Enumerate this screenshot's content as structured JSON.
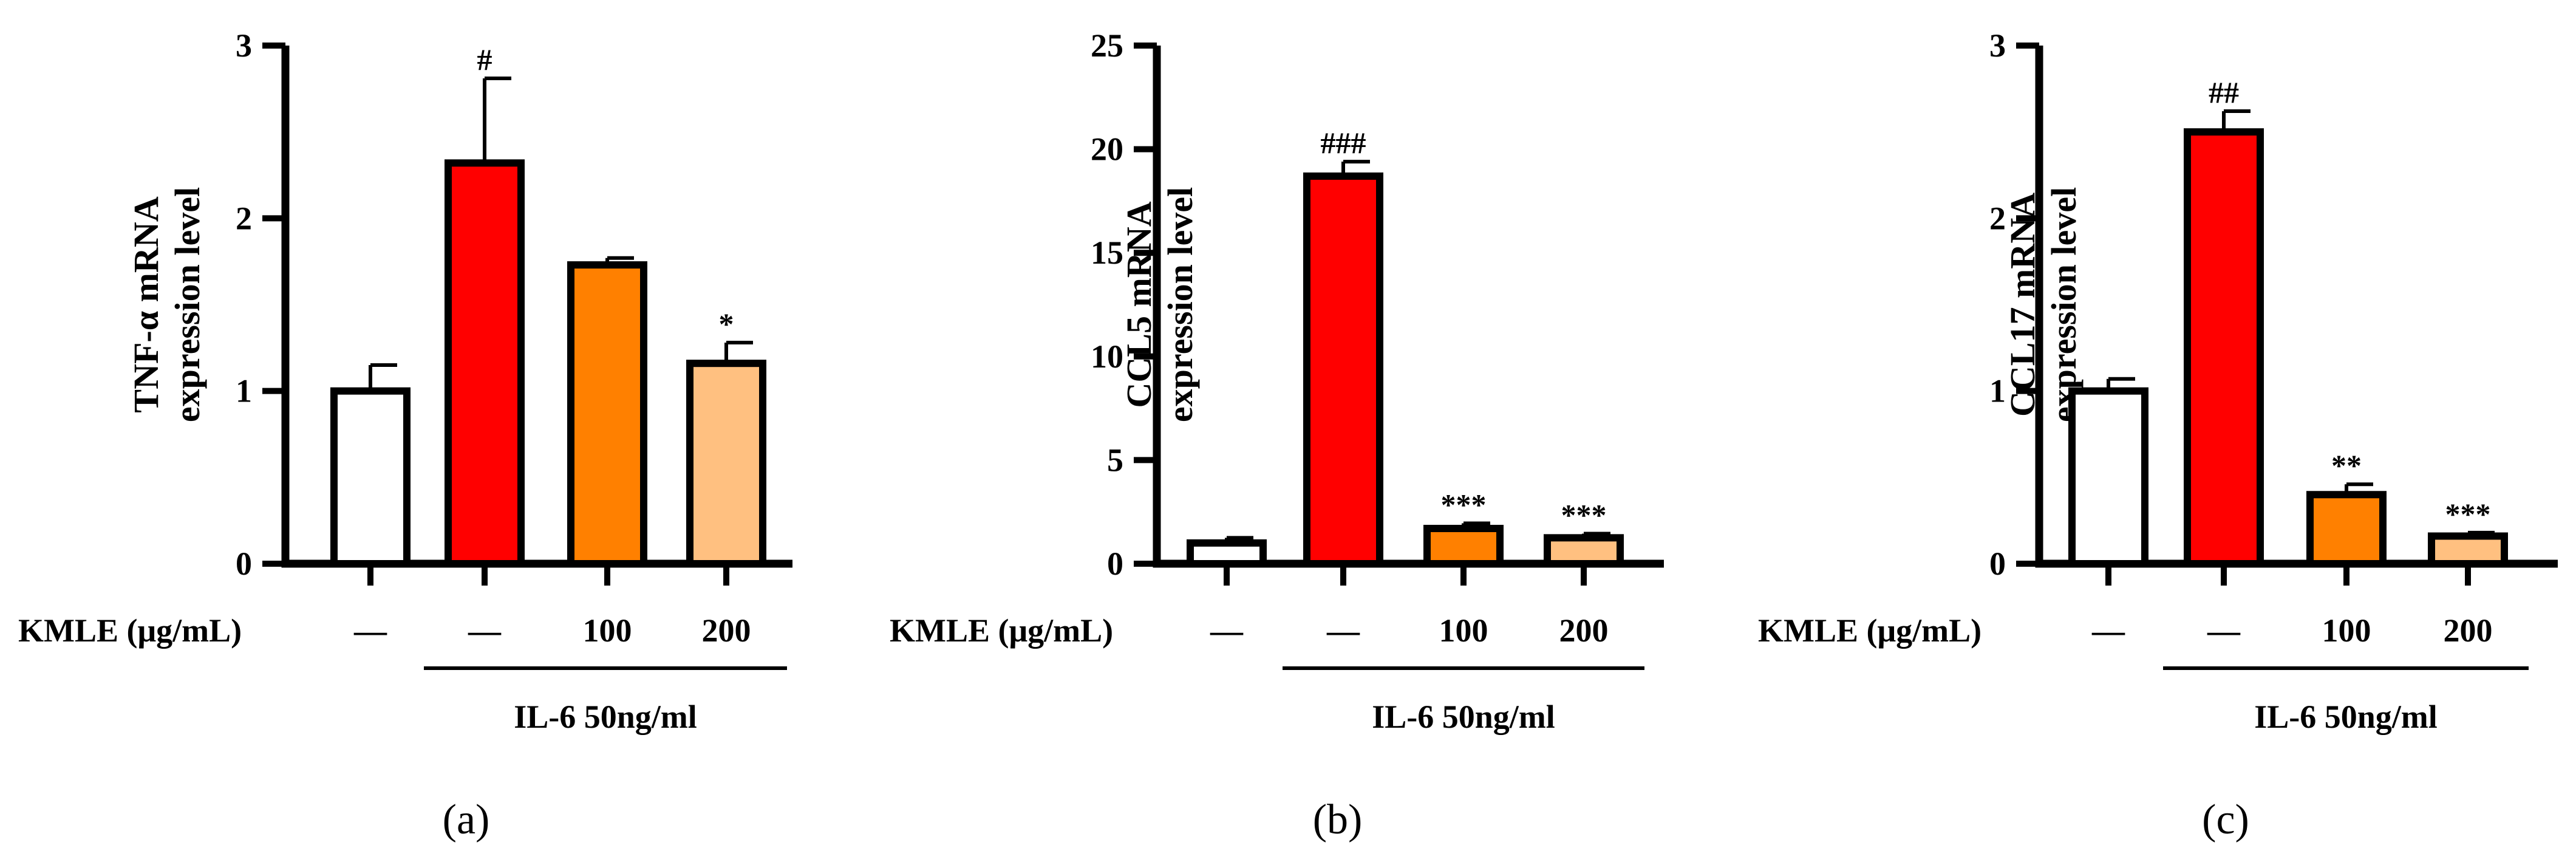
{
  "chart_data": [
    {
      "type": "bar",
      "panel_label": "(a)",
      "ylabel_line1": "TNF-α mRNA",
      "ylabel_line2": "expression level",
      "categories": [
        "—",
        "—",
        "100",
        "200"
      ],
      "values": [
        1.0,
        2.32,
        1.73,
        1.16
      ],
      "errors": [
        0.15,
        0.49,
        0.04,
        0.12
      ],
      "significance": [
        "",
        "#",
        "",
        "*"
      ],
      "ylim": [
        0,
        3
      ],
      "yticks": [
        0,
        1,
        2,
        3
      ],
      "x_row_label": "KMLE (μg/mL)",
      "treatment_label": "IL-6 50ng/ml"
    },
    {
      "type": "bar",
      "panel_label": "(b)",
      "ylabel_line1": "CCL5 mRNA",
      "ylabel_line2": "expression level",
      "categories": [
        "—",
        "—",
        "100",
        "200"
      ],
      "values": [
        1.0,
        18.7,
        1.7,
        1.25
      ],
      "errors": [
        0.25,
        0.7,
        0.25,
        0.2
      ],
      "significance": [
        "",
        "###",
        "***",
        "***"
      ],
      "ylim": [
        0,
        25
      ],
      "yticks": [
        0,
        5,
        10,
        15,
        20,
        25
      ],
      "x_row_label": "KMLE (μg/mL)",
      "treatment_label": "IL-6 50ng/ml"
    },
    {
      "type": "bar",
      "panel_label": "(c)",
      "ylabel_line1": "CCL17 mRNA",
      "ylabel_line2": "expression level",
      "categories": [
        "—",
        "—",
        "100",
        "200"
      ],
      "values": [
        1.0,
        2.5,
        0.4,
        0.16
      ],
      "errors": [
        0.07,
        0.12,
        0.06,
        0.02
      ],
      "significance": [
        "",
        "##",
        "**",
        "***"
      ],
      "ylim": [
        0,
        3
      ],
      "yticks": [
        0,
        1,
        2,
        3
      ],
      "x_row_label": "KMLE (μg/mL)",
      "treatment_label": "IL-6 50ng/ml"
    }
  ],
  "colors": {
    "bar_fills": [
      "#ffffff",
      "#ff0000",
      "#ff8000",
      "#ffc080"
    ],
    "stroke": "#000000"
  }
}
